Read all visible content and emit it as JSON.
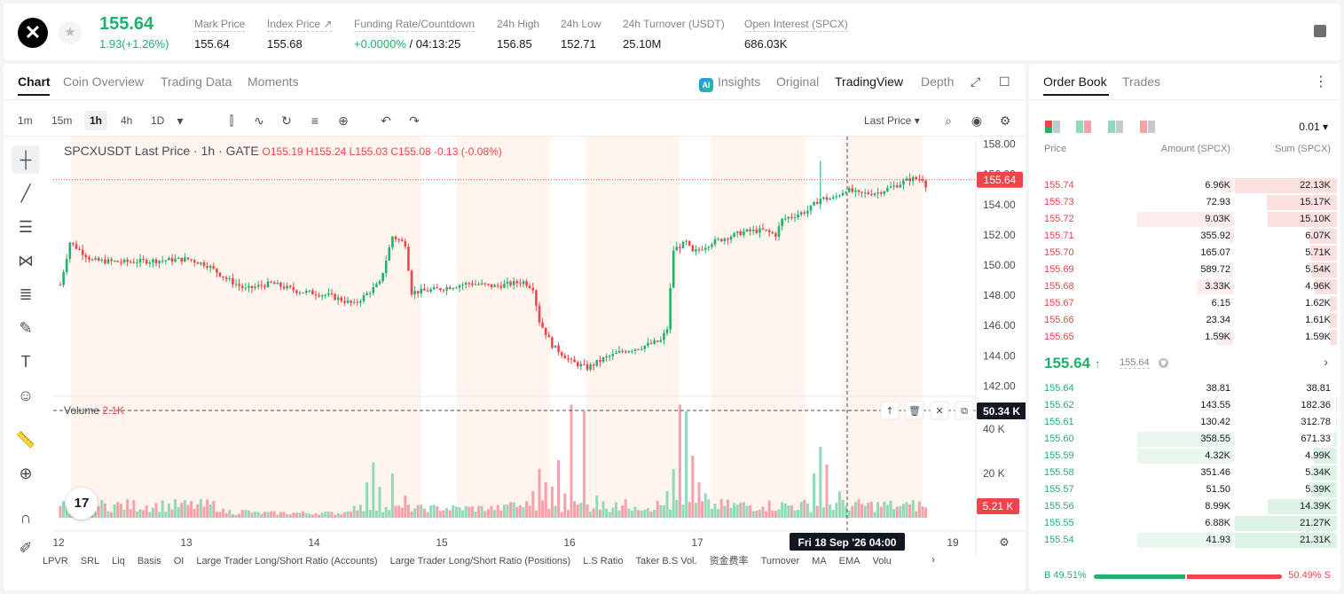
{
  "header": {
    "logo_glyph": "✕",
    "price": "155.64",
    "change": "1.93(+1.26%)",
    "stats": [
      {
        "label": "Mark Price",
        "value": "155.64"
      },
      {
        "label": "Index Price ↗",
        "value": "155.68"
      },
      {
        "label": "Funding Rate/Countdown",
        "value_green": "+0.0000%",
        "value_rest": " / 04:13:25"
      },
      {
        "label": "24h High",
        "value": "156.85"
      },
      {
        "label": "24h Low",
        "value": "152.71"
      },
      {
        "label": "24h Turnover (USDT)",
        "value": "25.10M"
      },
      {
        "label": "Open Interest (SPCX)",
        "value": "686.03K"
      }
    ]
  },
  "chart_tabs": [
    "Chart",
    "Coin Overview",
    "Trading Data",
    "Moments"
  ],
  "view_tabs": {
    "insights": "Insights",
    "original": "Original",
    "tradingview": "TradingView",
    "depth": "Depth"
  },
  "intervals": [
    "1m",
    "15m",
    "1h",
    "4h",
    "1D"
  ],
  "price_type": "Last Price",
  "chart_title": {
    "symbol": "SPCXUSDT Last Price · 1h · GATE",
    "o": "O155.19",
    "h": "H155.24",
    "l": "L155.03",
    "c": "C155.08",
    "chg": "-0.13 (-0.08%)"
  },
  "volume_label": {
    "name": "Volume",
    "value": "2.1K"
  },
  "price_axis_ticks": [
    "158.00",
    "156.00",
    "154.00",
    "152.00",
    "150.00",
    "148.00",
    "146.00",
    "144.00",
    "142.00"
  ],
  "price_marker": "155.64",
  "crosshair_vol_label": "50.34 K",
  "volume_axis_ticks": [
    "40 K",
    "20 K"
  ],
  "volume_marker": "5.21 K",
  "time_axis": [
    "12",
    "13",
    "14",
    "15",
    "16",
    "17",
    "19"
  ],
  "crosshair_time": "Fri 18 Sep '26   04:00",
  "bottom_indicators": [
    "LPVR",
    "SRL",
    "Liq",
    "Basis",
    "OI",
    "Large Trader Long/Short Ratio (Accounts)",
    "Large Trader Long/Short Ratio (Positions)",
    "L.S Ratio",
    "Taker B.S Vol.",
    "资金费率",
    "Turnover",
    "MA",
    "EMA",
    "Volu"
  ],
  "tv_badge": "17",
  "colors": {
    "up": "#20b26c",
    "down": "#ef454a",
    "up_vol": "#92d9b8",
    "down_vol": "#f5a1a8",
    "session": "#fff5ee"
  },
  "chart_data": {
    "type": "candlestick",
    "price_range": [
      141.5,
      158.5
    ],
    "volume_range": [
      0,
      52000
    ],
    "start_ts": "Sep 12 00:00",
    "last_price": 155.64,
    "ohlc_anchors": [
      [
        0,
        148.7
      ],
      [
        3,
        151.5
      ],
      [
        6,
        151.0
      ],
      [
        10,
        150.3
      ],
      [
        20,
        150.2
      ],
      [
        30,
        150.3
      ],
      [
        40,
        150.4
      ],
      [
        46,
        150.0
      ],
      [
        52,
        149.1
      ],
      [
        58,
        148.4
      ],
      [
        66,
        148.8
      ],
      [
        74,
        148.3
      ],
      [
        84,
        148.0
      ],
      [
        92,
        147.4
      ],
      [
        100,
        148.8
      ],
      [
        104,
        151.9
      ],
      [
        108,
        151.4
      ],
      [
        110,
        148.2
      ],
      [
        118,
        148.4
      ],
      [
        128,
        148.8
      ],
      [
        136,
        148.6
      ],
      [
        145,
        148.9
      ],
      [
        148,
        148.5
      ],
      [
        150,
        146.3
      ],
      [
        154,
        144.7
      ],
      [
        160,
        143.6
      ],
      [
        165,
        143.2
      ],
      [
        170,
        143.8
      ],
      [
        176,
        144.3
      ],
      [
        182,
        144.6
      ],
      [
        188,
        145.0
      ],
      [
        190,
        145.8
      ],
      [
        192,
        151.0
      ],
      [
        196,
        151.5
      ],
      [
        198,
        150.8
      ],
      [
        204,
        151.5
      ],
      [
        214,
        152.2
      ],
      [
        220,
        152.3
      ],
      [
        224,
        152.0
      ],
      [
        226,
        153.0
      ],
      [
        234,
        153.6
      ],
      [
        238,
        154.4
      ],
      [
        242,
        154.4
      ],
      [
        246,
        155.0
      ],
      [
        250,
        154.7
      ],
      [
        256,
        154.8
      ],
      [
        262,
        155.3
      ],
      [
        266,
        155.7
      ],
      [
        270,
        155.7
      ],
      [
        271,
        155.3
      ]
    ],
    "volume_profile": "low baseline ~3-8K with spikes near Sep 14 22:00 (~25K), Sep 15 22:00 (~50K), Sep 16 20:00 (~50K), Sep 17 22:00 (~25K)"
  },
  "orderbook": {
    "tabs": [
      "Order Book",
      "Trades"
    ],
    "precision": "0.01",
    "columns": {
      "price": "Price",
      "amount": "Amount (SPCX)",
      "sum": "Sum (SPCX)"
    },
    "asks": [
      {
        "price": "155.74",
        "amount": "6.96K",
        "sum": "22.13K",
        "amt_w": 0.05,
        "sum_w": 1.0
      },
      {
        "price": "155.73",
        "amount": "72.93",
        "sum": "15.17K",
        "amt_w": 0.0,
        "sum_w": 0.69
      },
      {
        "price": "155.72",
        "amount": "9.03K",
        "sum": "15.10K",
        "amt_w": 0.4,
        "sum_w": 0.68
      },
      {
        "price": "155.71",
        "amount": "355.92",
        "sum": "6.07K",
        "amt_w": 0.02,
        "sum_w": 0.27
      },
      {
        "price": "155.70",
        "amount": "165.07",
        "sum": "5.71K",
        "amt_w": 0.0,
        "sum_w": 0.26
      },
      {
        "price": "155.69",
        "amount": "589.72",
        "sum": "5.54K",
        "amt_w": 0.02,
        "sum_w": 0.25
      },
      {
        "price": "155.68",
        "amount": "3.33K",
        "sum": "4.96K",
        "amt_w": 0.15,
        "sum_w": 0.22
      },
      {
        "price": "155.67",
        "amount": "6.15",
        "sum": "1.62K",
        "amt_w": 0.0,
        "sum_w": 0.07
      },
      {
        "price": "155.66",
        "amount": "23.34",
        "sum": "1.61K",
        "amt_w": 0.0,
        "sum_w": 0.07
      },
      {
        "price": "155.65",
        "amount": "1.59K",
        "sum": "1.59K",
        "amt_w": 0.07,
        "sum_w": 0.07
      }
    ],
    "last_price": "155.64",
    "last_arrow": "↑",
    "mark_price": "155.64",
    "bids": [
      {
        "price": "155.64",
        "amount": "38.81",
        "sum": "38.81",
        "amt_w": 0.0,
        "sum_w": 0.0
      },
      {
        "price": "155.62",
        "amount": "143.55",
        "sum": "182.36",
        "amt_w": 0.0,
        "sum_w": 0.01
      },
      {
        "price": "155.61",
        "amount": "130.42",
        "sum": "312.78",
        "amt_w": 0.0,
        "sum_w": 0.01
      },
      {
        "price": "155.60",
        "amount": "358.55",
        "sum": "671.33",
        "amt_w": 0.4,
        "sum_w": 0.03
      },
      {
        "price": "155.59",
        "amount": "4.32K",
        "sum": "4.99K",
        "amt_w": 0.4,
        "sum_w": 0.23
      },
      {
        "price": "155.58",
        "amount": "351.46",
        "sum": "5.34K",
        "amt_w": 0.0,
        "sum_w": 0.25
      },
      {
        "price": "155.57",
        "amount": "51.50",
        "sum": "5.39K",
        "amt_w": 0.0,
        "sum_w": 0.25
      },
      {
        "price": "155.56",
        "amount": "8.99K",
        "sum": "14.39K",
        "amt_w": 0.0,
        "sum_w": 0.68
      },
      {
        "price": "155.55",
        "amount": "6.88K",
        "sum": "21.27K",
        "amt_w": 0.0,
        "sum_w": 1.0
      },
      {
        "price": "155.54",
        "amount": "41.93",
        "sum": "21.31K",
        "amt_w": 0.4,
        "sum_w": 1.0
      }
    ],
    "ratio": {
      "buy": "49.51%",
      "sell": "50.49%",
      "buy_label": "B",
      "sell_label": "S",
      "buy_frac": 0.4951
    }
  }
}
